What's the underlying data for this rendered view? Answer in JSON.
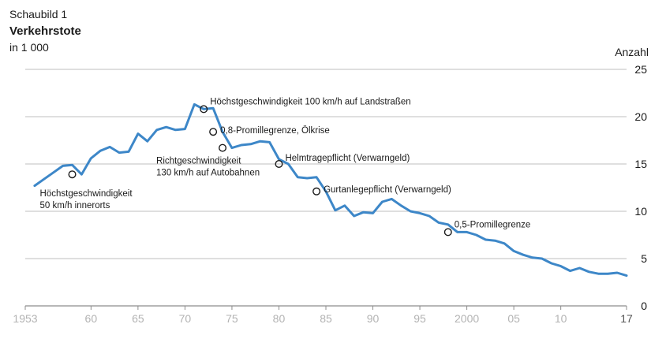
{
  "header": {
    "label": "Schaubild 1",
    "title": "Verkehrstote",
    "subtitle": "in 1 000",
    "unit": "Anzahl"
  },
  "colors": {
    "line": "#3d87c8",
    "grid": "#bfbfbf",
    "axis": "#8c8c8c",
    "marker": "#1a1a1a"
  },
  "chart_data": {
    "type": "line",
    "title": "Verkehrstote",
    "ylabel": "Anzahl",
    "ylim": [
      0,
      25
    ],
    "xlim": [
      1953,
      2017
    ],
    "yticks": [
      0,
      5,
      10,
      15,
      20,
      25
    ],
    "xticks": [
      {
        "year": 1953,
        "label": "1953"
      },
      {
        "year": 1960,
        "label": "60"
      },
      {
        "year": 1965,
        "label": "65"
      },
      {
        "year": 1970,
        "label": "70"
      },
      {
        "year": 1975,
        "label": "75"
      },
      {
        "year": 1980,
        "label": "80"
      },
      {
        "year": 1985,
        "label": "85"
      },
      {
        "year": 1990,
        "label": "90"
      },
      {
        "year": 1995,
        "label": "95"
      },
      {
        "year": 2000,
        "label": "2000"
      },
      {
        "year": 2005,
        "label": "05"
      },
      {
        "year": 2010,
        "label": "10"
      },
      {
        "year": 2017,
        "label": "17"
      }
    ],
    "grid": true,
    "series": [
      {
        "x": [
          1954,
          1955,
          1956,
          1957,
          1958,
          1959,
          1960,
          1961,
          1962,
          1963,
          1964,
          1965,
          1966,
          1967,
          1968,
          1969,
          1970,
          1971,
          1972,
          1973,
          1974,
          1975,
          1976,
          1977,
          1978,
          1979,
          1980,
          1981,
          1982,
          1983,
          1984,
          1985,
          1986,
          1987,
          1988,
          1989,
          1990,
          1991,
          1992,
          1993,
          1994,
          1995,
          1996,
          1997,
          1998,
          1999,
          2000,
          2001,
          2002,
          2003,
          2004,
          2005,
          2006,
          2007,
          2008,
          2009,
          2010,
          2011,
          2012,
          2013,
          2014,
          2015,
          2016,
          2017
        ],
        "y": [
          12.7,
          13.4,
          14.1,
          14.8,
          14.9,
          13.9,
          15.6,
          16.4,
          16.8,
          16.2,
          16.3,
          18.2,
          17.4,
          18.6,
          18.9,
          18.6,
          18.7,
          21.3,
          20.8,
          20.9,
          18.4,
          16.7,
          17.0,
          17.1,
          17.4,
          17.3,
          15.5,
          15.0,
          13.6,
          13.5,
          13.6,
          12.1,
          10.1,
          10.6,
          9.5,
          9.9,
          9.8,
          11.0,
          11.3,
          10.6,
          10.0,
          9.8,
          9.5,
          8.8,
          8.6,
          7.8,
          7.8,
          7.5,
          7.0,
          6.9,
          6.6,
          5.8,
          5.4,
          5.1,
          5.0,
          4.5,
          4.2,
          3.7,
          4.0,
          3.6,
          3.4,
          3.4,
          3.5,
          3.2
        ]
      }
    ],
    "annotations": [
      {
        "year": 1958,
        "value": 13.9,
        "lines": [
          "Höchstgeschwindigkeit",
          "50 km/h innerorts"
        ]
      },
      {
        "year": 1972,
        "value": 20.8,
        "lines": [
          "Höchstgeschwindigkeit 100 km/h auf Landstraßen"
        ]
      },
      {
        "year": 1973,
        "value": 18.4,
        "lines": [
          "0,8-Promillegrenze, Ölkrise"
        ]
      },
      {
        "year": 1974,
        "value": 16.7,
        "lines": [
          "Richtgeschwindigkeit",
          "130 km/h auf Autobahnen"
        ]
      },
      {
        "year": 1980,
        "value": 15.0,
        "lines": [
          "Helmtragepflicht (Verwarngeld)"
        ]
      },
      {
        "year": 1984,
        "value": 12.1,
        "lines": [
          "Gurtanlegepflicht (Verwarngeld)"
        ]
      },
      {
        "year": 1998,
        "value": 7.8,
        "lines": [
          "0,5-Promillegrenze"
        ]
      }
    ]
  }
}
